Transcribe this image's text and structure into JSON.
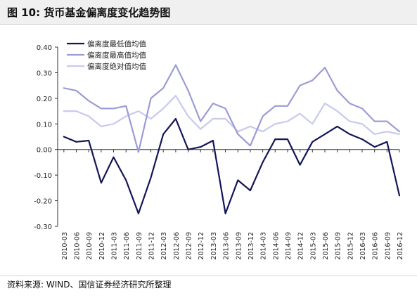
{
  "figure": {
    "title": "图 10:  货币基金偏离度变化趋势图",
    "source": "资料来源: WIND、国信证券经济研究所整理"
  },
  "chart_data": {
    "type": "line",
    "title": "",
    "xlabel": "",
    "ylabel": "",
    "ylim": [
      -0.3,
      0.4
    ],
    "yticks": [
      -0.3,
      -0.2,
      -0.1,
      0.0,
      0.1,
      0.2,
      0.3,
      0.4
    ],
    "ytick_labels": [
      "-0.30",
      "-0.20",
      "-0.10",
      "0.00",
      "0.10",
      "0.20",
      "0.30",
      "0.40"
    ],
    "grid": false,
    "legend": "top-left",
    "x": [
      "2010-03",
      "2010-06",
      "2010-09",
      "2010-12",
      "2011-03",
      "2011-06",
      "2011-09",
      "2011-12",
      "2012-03",
      "2012-06",
      "2012-09",
      "2012-12",
      "2013-03",
      "2013-06",
      "2013-09",
      "2013-12",
      "2014-03",
      "2014-06",
      "2014-09",
      "2014-12",
      "2015-03",
      "2015-06",
      "2015-09",
      "2015-12",
      "2016-03",
      "2016-06",
      "2016-09",
      "2016-12"
    ],
    "series": [
      {
        "name": "偏离度最低值均值",
        "color": "#131557",
        "width": 2.2,
        "values": [
          0.05,
          0.03,
          0.035,
          -0.13,
          -0.03,
          -0.12,
          -0.25,
          -0.11,
          0.06,
          0.12,
          0.0,
          0.01,
          0.035,
          -0.25,
          -0.12,
          -0.16,
          -0.05,
          0.04,
          0.04,
          -0.06,
          0.03,
          0.06,
          0.09,
          0.06,
          0.04,
          0.01,
          0.03,
          -0.18
        ]
      },
      {
        "name": "偏离度最高值均值",
        "color": "#9b9bd8",
        "width": 2.2,
        "values": [
          0.24,
          0.23,
          0.19,
          0.16,
          0.16,
          0.17,
          -0.01,
          0.2,
          0.24,
          0.33,
          0.23,
          0.11,
          0.18,
          0.16,
          0.06,
          0.015,
          0.13,
          0.17,
          0.17,
          0.25,
          0.27,
          0.32,
          0.23,
          0.18,
          0.16,
          0.11,
          0.11,
          0.07
        ]
      },
      {
        "name": "偏离度绝对值均值",
        "color": "#c9c9ee",
        "width": 2.2,
        "values": [
          0.15,
          0.15,
          0.13,
          0.09,
          0.1,
          0.13,
          0.15,
          0.12,
          0.16,
          0.21,
          0.13,
          0.08,
          0.12,
          0.12,
          0.07,
          0.09,
          0.07,
          0.1,
          0.11,
          0.14,
          0.1,
          0.18,
          0.15,
          0.11,
          0.1,
          0.06,
          0.07,
          0.06
        ]
      }
    ]
  }
}
